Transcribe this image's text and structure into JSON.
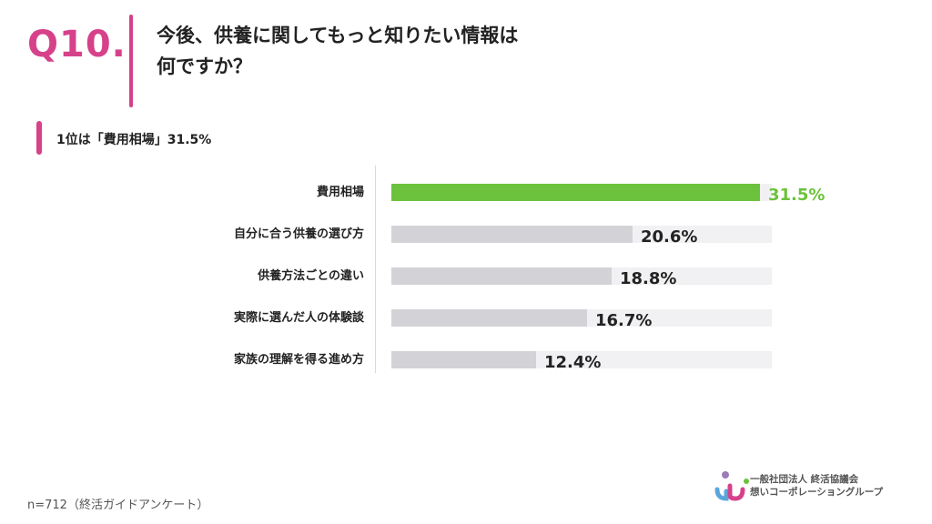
{
  "question": {
    "number": "Q10.",
    "title_line1": "今後、供養に関してもっと知りたい情報は",
    "title_line2": "何ですか？"
  },
  "summary": "1位は「費用相場」31.5%",
  "chart_data": {
    "type": "bar",
    "orientation": "horizontal",
    "categories": [
      "費用相場",
      "自分に合う供養の選び方",
      "供養方法ごとの違い",
      "実際に選んだ人の体験談",
      "家族の理解を得る進め方"
    ],
    "values": [
      31.5,
      20.6,
      18.8,
      16.7,
      12.4
    ],
    "value_labels": [
      "31.5%",
      "20.6%",
      "18.8%",
      "16.7%",
      "12.4%"
    ],
    "unit": "%",
    "xlim": [
      0,
      32.5
    ],
    "grid": false,
    "highlight_color": "#6cc23c",
    "bar_color": "#d3d2d6",
    "track_color": "#f1f0f2"
  },
  "footnote": "n=712（終活ガイドアンケート）",
  "logo": {
    "line1": "一般社団法人 終活協議会",
    "line2": "想いコーポレーショングループ",
    "icon": "shukatsu-logo-icon"
  },
  "colors": {
    "accent": "#d6418a",
    "highlight": "#6cc23c"
  }
}
